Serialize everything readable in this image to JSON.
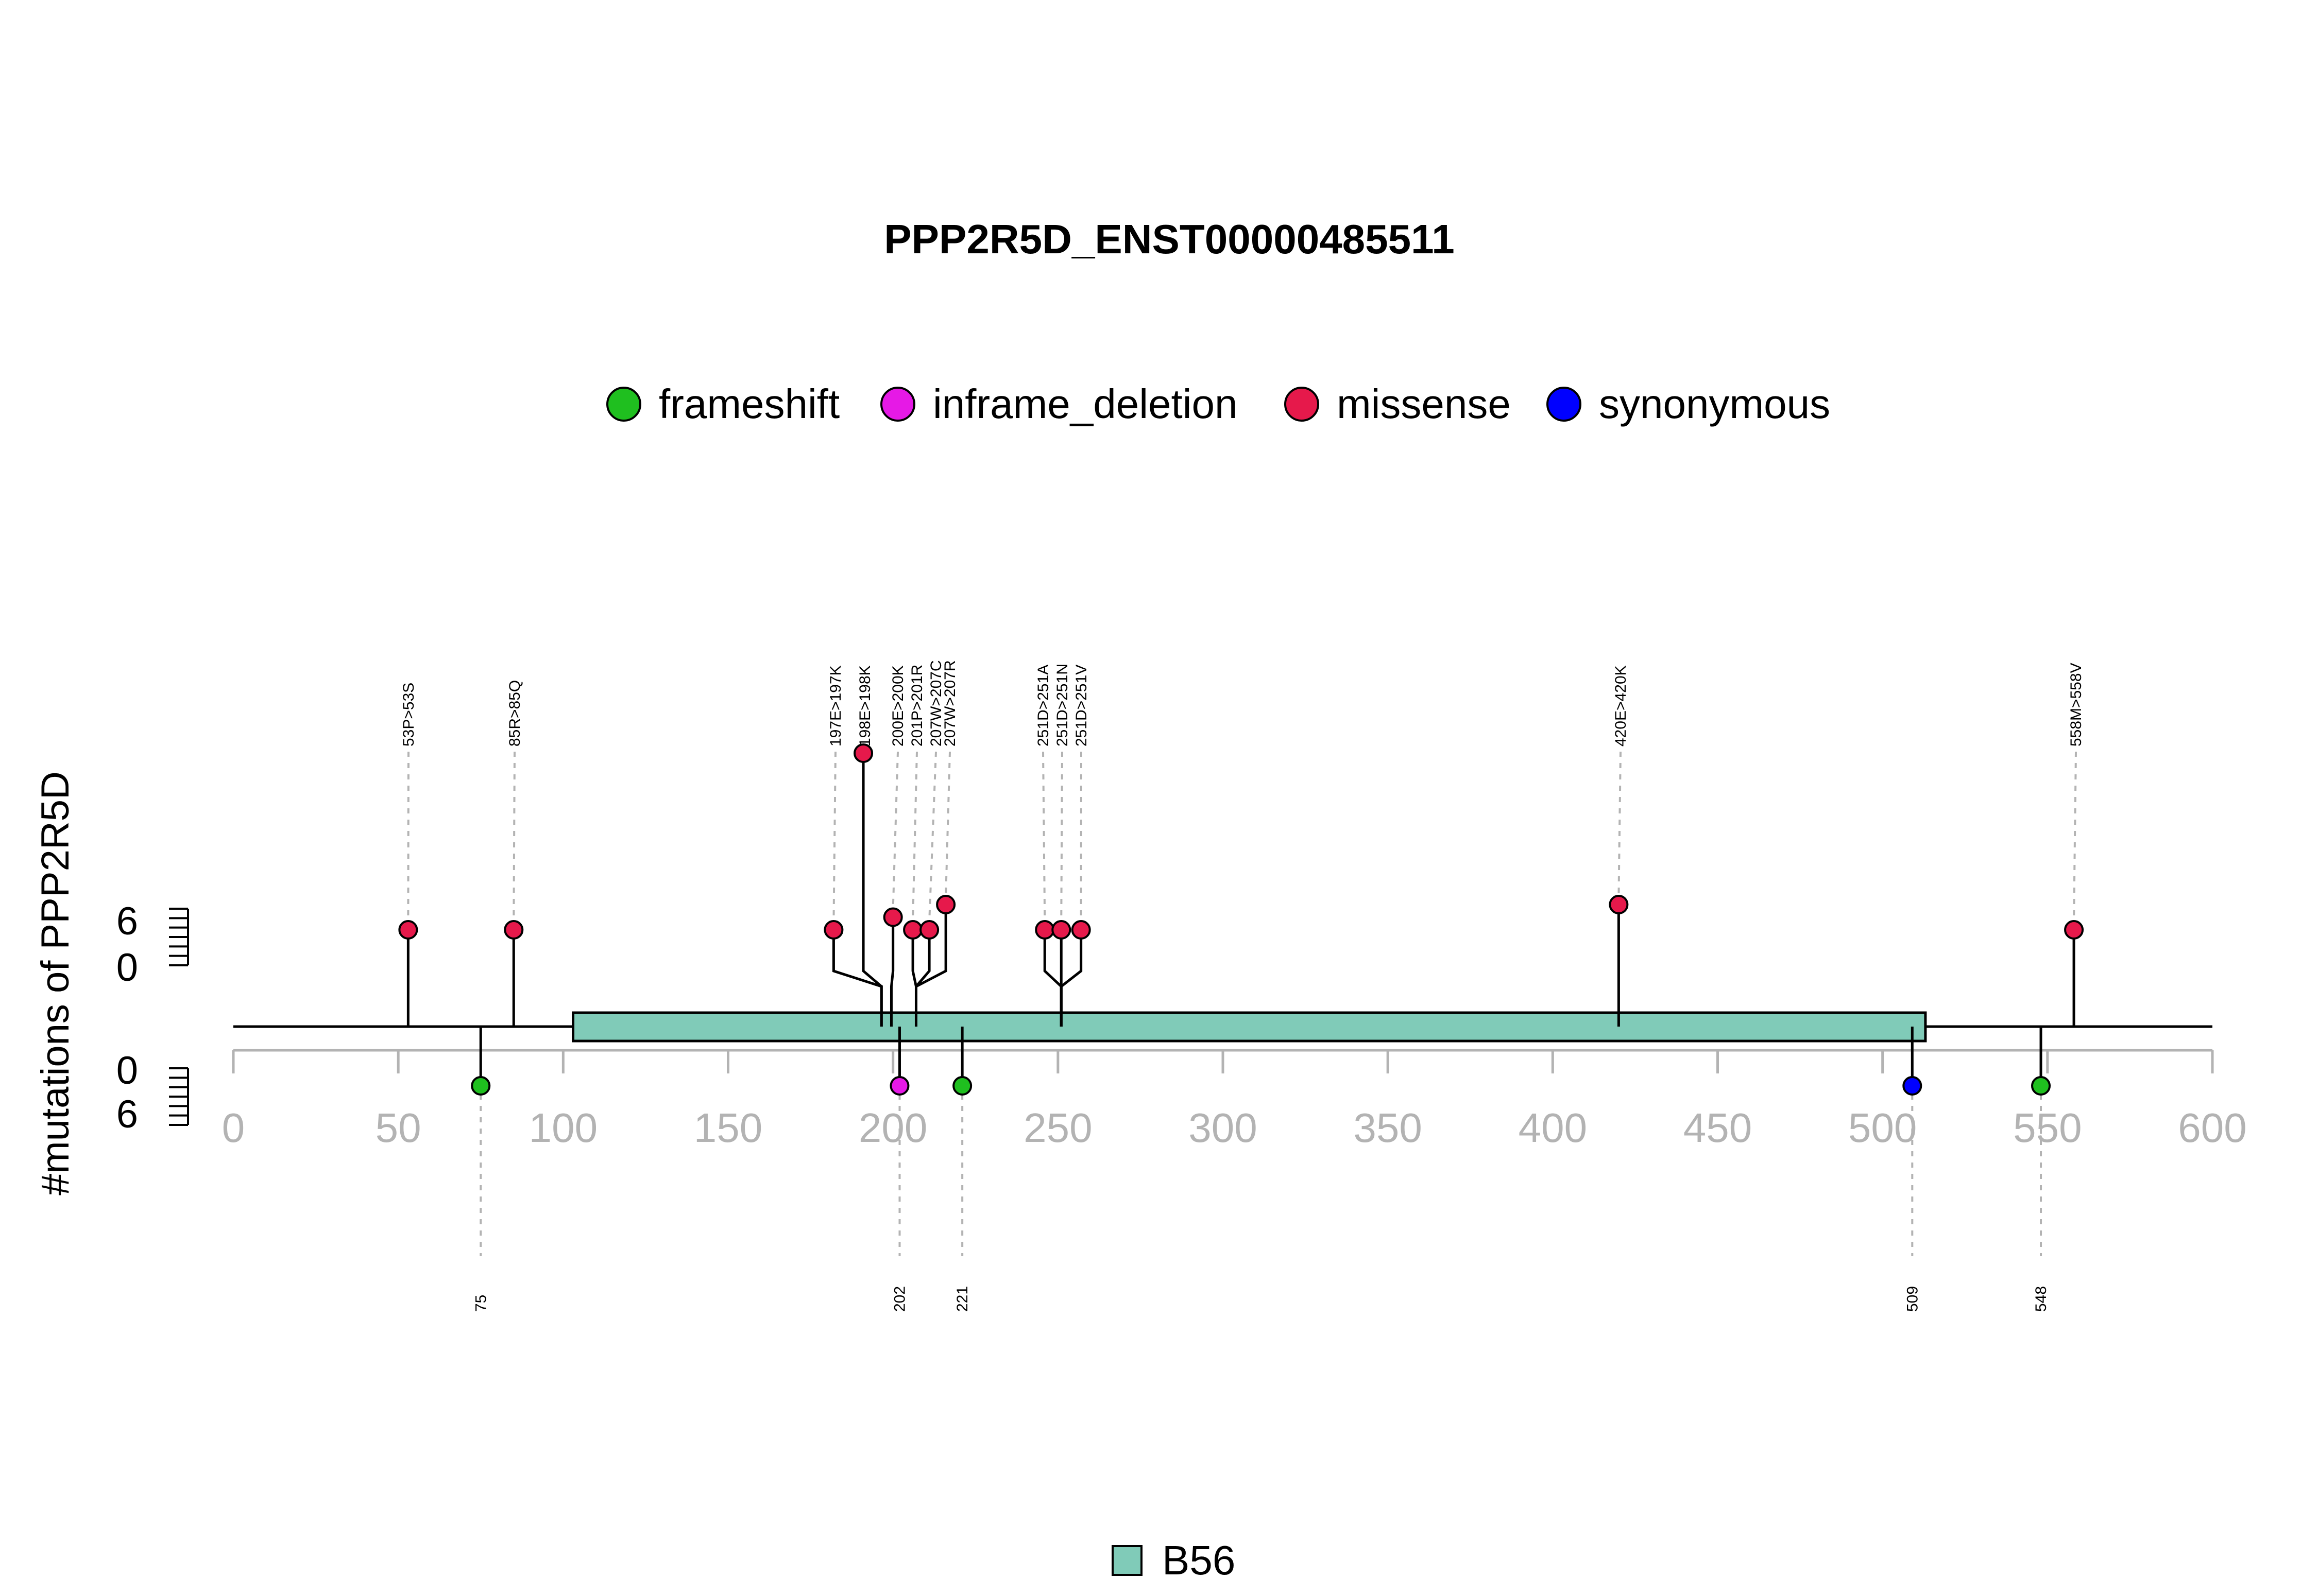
{
  "chart_data": {
    "type": "lollipop",
    "title": "PPP2R5D_ENST00000485511",
    "ylabel": "#mutations of PPP2R5D",
    "xlim": [
      0,
      600
    ],
    "x_ticks": [
      0,
      50,
      100,
      150,
      200,
      250,
      300,
      350,
      400,
      450,
      500,
      550,
      600
    ],
    "y_ticks_top": [
      "6",
      "0"
    ],
    "y_ticks_bottom": [
      "0",
      "6"
    ],
    "legend": [
      {
        "name": "frameshift",
        "color": "#1fbf1f"
      },
      {
        "name": "inframe_deletion",
        "color": "#e619e6"
      },
      {
        "name": "missense",
        "color": "#e6194b"
      },
      {
        "name": "synonymous",
        "color": "#0000ff"
      }
    ],
    "domains": [
      {
        "name": "B56",
        "start": 103,
        "end": 513,
        "color": "#80cbb8"
      }
    ],
    "top_mutations": [
      {
        "position": 53,
        "label": "53P>53S",
        "type": "missense",
        "count": 1
      },
      {
        "position": 85,
        "label": "85R>85Q",
        "type": "missense",
        "count": 1
      },
      {
        "position": 197,
        "label": "197E>197K",
        "type": "missense",
        "count": 1
      },
      {
        "position": 198,
        "label": "198E>198K",
        "type": "missense",
        "count": 8
      },
      {
        "position": 200,
        "label": "200E>200K",
        "type": "missense",
        "count": 1.5
      },
      {
        "position": 201,
        "label": "201P>201R",
        "type": "missense",
        "count": 1
      },
      {
        "position": 207,
        "label": "207W>207C",
        "type": "missense",
        "count": 1
      },
      {
        "position": 207,
        "label": "207W>207R",
        "type": "missense",
        "count": 2
      },
      {
        "position": 251,
        "label": "251D>251A",
        "type": "missense",
        "count": 1
      },
      {
        "position": 251,
        "label": "251D>251N",
        "type": "missense",
        "count": 1
      },
      {
        "position": 251,
        "label": "251D>251V",
        "type": "missense",
        "count": 1
      },
      {
        "position": 420,
        "label": "420E>420K",
        "type": "missense",
        "count": 2
      },
      {
        "position": 558,
        "label": "558M>558V",
        "type": "missense",
        "count": 1
      }
    ],
    "bottom_mutations": [
      {
        "position": 75,
        "label": "75",
        "type": "frameshift",
        "count": 1
      },
      {
        "position": 202,
        "label": "202",
        "type": "inframe_deletion",
        "count": 1
      },
      {
        "position": 221,
        "label": "221",
        "type": "frameshift",
        "count": 1
      },
      {
        "position": 509,
        "label": "509",
        "type": "synonymous",
        "count": 1
      },
      {
        "position": 548,
        "label": "548",
        "type": "frameshift",
        "count": 1
      }
    ]
  }
}
